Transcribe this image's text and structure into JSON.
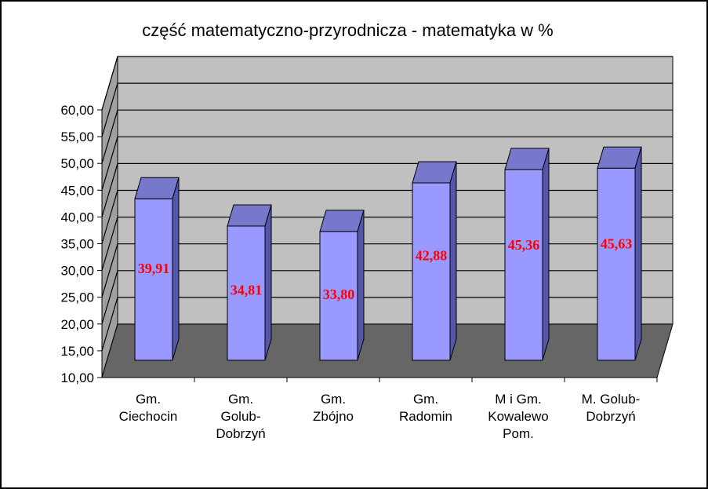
{
  "chart_data": {
    "type": "bar",
    "title": "część matematyczno-przyrodnicza - matematyka w %",
    "categories": [
      [
        "Gm.",
        "Ciechocin"
      ],
      [
        "Gm.",
        "Golub-",
        "Dobrzyń"
      ],
      [
        "Gm.",
        "Zbójno"
      ],
      [
        "Gm.",
        "Radomin"
      ],
      [
        "M i Gm.",
        "Kowalewo",
        "Pom."
      ],
      [
        "M. Golub-",
        "Dobrzyń"
      ]
    ],
    "values": [
      39.91,
      34.81,
      33.8,
      42.88,
      45.36,
      45.63
    ],
    "value_labels": [
      "39,91",
      "34,81",
      "33,80",
      "42,88",
      "45,36",
      "45,63"
    ],
    "ylim": [
      10,
      60
    ],
    "yticks": [
      "10,00",
      "15,00",
      "20,00",
      "25,00",
      "30,00",
      "35,00",
      "40,00",
      "45,00",
      "50,00",
      "55,00",
      "60,00"
    ],
    "grid": true,
    "legend": "none",
    "colors": {
      "bar_front": "#9999ff",
      "bar_top": "#7777cc",
      "bar_side": "#5555aa",
      "wall": "#c0c0c0",
      "floor": "#666666",
      "label": "#ff0000"
    }
  }
}
